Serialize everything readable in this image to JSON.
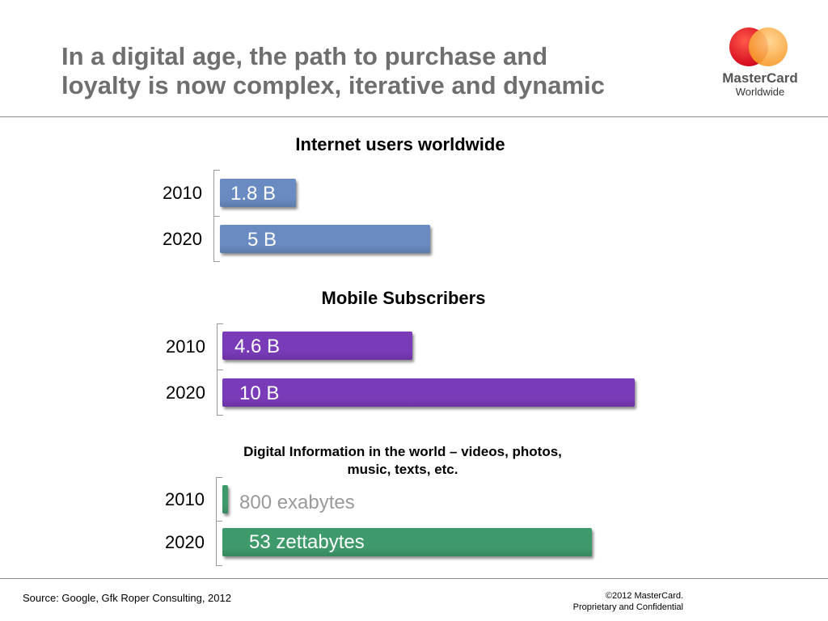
{
  "slide": {
    "title_line1": "In a digital age, the path to purchase and",
    "title_line2": "loyalty is now complex, iterative and dynamic",
    "logo_text_line1": "MasterCard",
    "logo_text_line2": "Worldwide",
    "source": "Source: Google, Gfk Roper Consulting, 2012",
    "copyright_line1": "©2012 MasterCard.",
    "copyright_line2": "Proprietary and Confidential"
  },
  "colors": {
    "title": "#6f6f6f",
    "internet_bar": "#6a8bc2",
    "mobile_bar": "#7a3bb8",
    "digital_bar": "#3f9a6b",
    "logo_red": "#eb001b",
    "logo_orange": "#f79e1b"
  },
  "chart_data": [
    {
      "type": "bar",
      "orientation": "horizontal",
      "title": "Internet users worldwide",
      "categories": [
        "2010",
        "2020"
      ],
      "values": [
        1.8,
        5
      ],
      "unit": "B",
      "data_labels": [
        "1.8 B",
        "5 B"
      ],
      "color": "#6a8bc2"
    },
    {
      "type": "bar",
      "orientation": "horizontal",
      "title": "Mobile Subscribers",
      "categories": [
        "2010",
        "2020"
      ],
      "values": [
        4.6,
        10
      ],
      "unit": "B",
      "data_labels": [
        "4.6 B",
        "10 B"
      ],
      "color": "#7a3bb8"
    },
    {
      "type": "bar",
      "orientation": "horizontal",
      "title_line1": "Digital Information in the world – videos, photos,",
      "title_line2": "music, texts, etc.",
      "categories": [
        "2010",
        "2020"
      ],
      "values": [
        0.8,
        53
      ],
      "unit": "zettabytes",
      "data_labels": [
        "800 exabytes",
        "53 zettabytes"
      ],
      "color": "#3f9a6b"
    }
  ]
}
